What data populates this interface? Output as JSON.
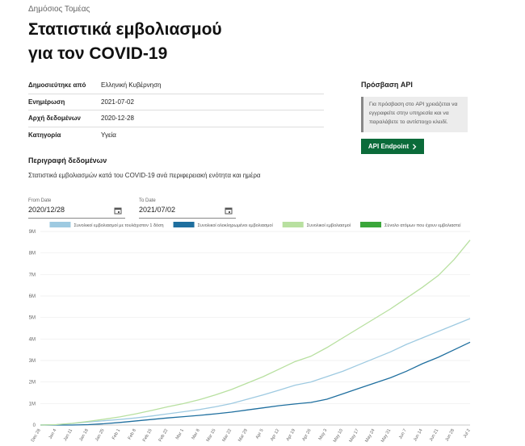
{
  "breadcrumb": "Δημόσιος Τομέας",
  "title": [
    "Στατιστικά εμβολιασμού",
    "για τον COVID-19"
  ],
  "metadata": [
    [
      "Δημοσιεύτηκε από",
      "Ελληνική Κυβέρνηση"
    ],
    [
      "Ενημέρωση",
      "2021-07-02"
    ],
    [
      "Αρχή δεδομένων",
      "2020-12-28"
    ],
    [
      "Κατηγορία",
      "Υγεία"
    ]
  ],
  "api": {
    "title": "Πρόσβαση API",
    "note": "Για πρόσβαση στο API χρειάζεται να εγγραφείτε στην υπηρεσία και να παραλάβετε το αντίστοιχο κλειδί.",
    "button": "API Endpoint"
  },
  "description": {
    "title": "Περιγραφή δεδομένων",
    "text": "Στατιστικά εμβολιασμών κατά του COVID-19 ανά περιφερειακή ενότητα και ημέρα"
  },
  "date_filters": [
    {
      "label": "From Date",
      "value": "2020/12/28"
    },
    {
      "label": "To Date",
      "value": "2021/07/02"
    }
  ],
  "chart_data": {
    "type": "line",
    "categories": [
      "Dec 28",
      "Jan 4",
      "Jan 11",
      "Jan 18",
      "Jan 25",
      "Feb 1",
      "Feb 8",
      "Feb 15",
      "Feb 22",
      "Mar 1",
      "Mar 8",
      "Mar 15",
      "Mar 22",
      "Mar 29",
      "Apr 5",
      "Apr 12",
      "Apr 19",
      "Apr 26",
      "May 3",
      "May 10",
      "May 17",
      "May 24",
      "May 31",
      "Jun 7",
      "Jun 14",
      "Jun 21",
      "Jun 28",
      "Jul 2"
    ],
    "series": [
      {
        "name": "Συνολικοί εμβολιασμοί με τουλάχιστον 1 δόση",
        "color": "#9ecae1",
        "values": [
          0,
          20000,
          70000,
          140000,
          200000,
          260000,
          330000,
          420000,
          520000,
          620000,
          720000,
          850000,
          1000000,
          1200000,
          1400000,
          1620000,
          1850000,
          2000000,
          2250000,
          2500000,
          2800000,
          3100000,
          3400000,
          3750000,
          4050000,
          4350000,
          4650000,
          4950000
        ]
      },
      {
        "name": "Συνολικοί ολοκληρωμένοι εμβολιασμοί",
        "color": "#1f6f9f",
        "values": [
          0,
          0,
          0,
          20000,
          60000,
          120000,
          190000,
          260000,
          330000,
          390000,
          450000,
          520000,
          600000,
          700000,
          800000,
          900000,
          980000,
          1050000,
          1200000,
          1450000,
          1700000,
          1950000,
          2200000,
          2500000,
          2850000,
          3150000,
          3500000,
          3850000
        ]
      },
      {
        "name": "Συνολικοί εμβολιασμοί",
        "color": "#b8e0a0",
        "values": [
          0,
          20000,
          80000,
          170000,
          270000,
          380000,
          520000,
          680000,
          850000,
          1000000,
          1180000,
          1400000,
          1650000,
          1950000,
          2250000,
          2600000,
          2950000,
          3200000,
          3600000,
          4050000,
          4500000,
          4950000,
          5400000,
          5900000,
          6400000,
          6950000,
          7700000,
          8600000
        ]
      },
      {
        "name": "Σύνολο ατόμων που έχουν εμβολιαστεί",
        "color": "#3aa63a",
        "values": [
          null,
          null,
          null,
          null,
          null,
          null,
          null,
          null,
          null,
          null,
          null,
          null,
          null,
          null,
          null,
          null,
          null,
          null,
          null,
          null,
          null,
          null,
          null,
          null,
          null,
          null,
          null,
          null
        ]
      }
    ],
    "ylim": [
      0,
      9000000
    ],
    "yticks": [
      0,
      {
        "value": 1000000,
        "label": "1M"
      },
      {
        "value": 2000000,
        "label": "2M"
      },
      {
        "value": 3000000,
        "label": "3M"
      },
      {
        "value": 4000000,
        "label": "4M"
      },
      {
        "value": 5000000,
        "label": "5M"
      },
      {
        "value": 6000000,
        "label": "6M"
      },
      {
        "value": 7000000,
        "label": "7M"
      },
      {
        "value": 8000000,
        "label": "8M"
      },
      {
        "value": 9000000,
        "label": "9M"
      }
    ],
    "grid": true
  }
}
